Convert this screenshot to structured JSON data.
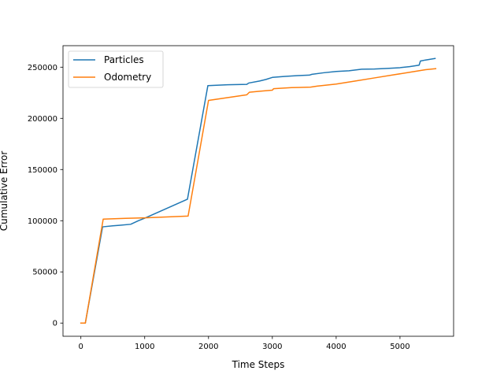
{
  "chart_data": {
    "type": "line",
    "title": "",
    "xlabel": "Time Steps",
    "ylabel": "Cumulative Error",
    "xlim": [
      -280,
      5840
    ],
    "ylim": [
      -12900,
      271000
    ],
    "xticks": [
      0,
      1000,
      2000,
      3000,
      4000,
      5000
    ],
    "xtick_labels": [
      "0",
      "1000",
      "2000",
      "3000",
      "4000",
      "5000"
    ],
    "yticks": [
      0,
      50000,
      100000,
      150000,
      200000,
      250000
    ],
    "ytick_labels": [
      "0",
      "50000",
      "100000",
      "150000",
      "200000",
      "250000"
    ],
    "grid": false,
    "legend": "top-left",
    "series": [
      {
        "name": "Particles",
        "color": "#1f77b4",
        "x": [
          0,
          70,
          340,
          500,
          600,
          780,
          900,
          1000,
          1670,
          1990,
          2300,
          2600,
          2630,
          2800,
          2900,
          3000,
          3200,
          3400,
          3580,
          3620,
          3800,
          4000,
          4200,
          4400,
          4600,
          4800,
          5000,
          5150,
          5300,
          5320,
          5400,
          5550
        ],
        "y": [
          0,
          0,
          94000,
          95000,
          95500,
          96500,
          100000,
          102500,
          121000,
          232000,
          232800,
          233200,
          234500,
          236500,
          238000,
          240000,
          241000,
          241800,
          242200,
          243000,
          244500,
          245800,
          246500,
          248000,
          248200,
          248800,
          249500,
          250500,
          252000,
          256000,
          257000,
          258500
        ]
      },
      {
        "name": "Odometry",
        "color": "#ff7f0e",
        "x": [
          0,
          70,
          350,
          700,
          1000,
          1680,
          2000,
          2600,
          2640,
          2800,
          3000,
          3020,
          3300,
          3600,
          3700,
          4000,
          4300,
          4600,
          4900,
          5200,
          5400,
          5560
        ],
        "y": [
          0,
          0,
          101500,
          102300,
          102800,
          104500,
          217500,
          223000,
          225500,
          226500,
          227500,
          229000,
          230000,
          230500,
          231500,
          233500,
          236500,
          239500,
          242500,
          245500,
          247500,
          248500
        ]
      }
    ]
  }
}
